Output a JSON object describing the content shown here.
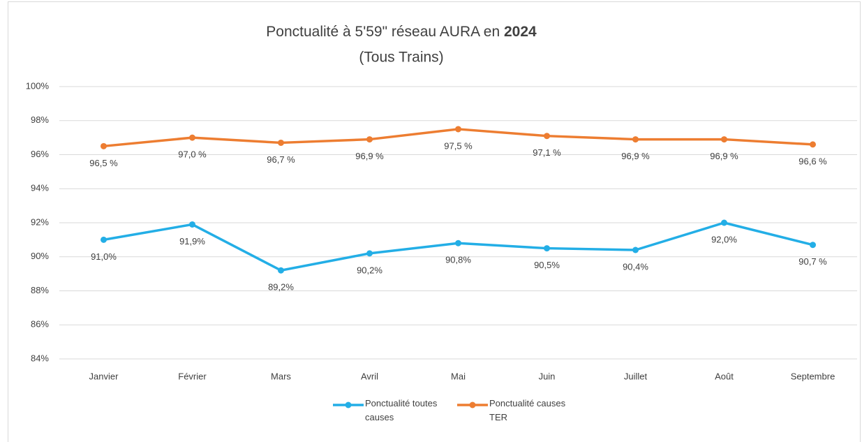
{
  "chart_data": {
    "type": "line",
    "title": [
      "Ponctualité à 5'59\" réseau AURA en ",
      "2024"
    ],
    "subtitle": "(Tous Trains)",
    "categories": [
      "Janvier",
      "Février",
      "Mars",
      "Avril",
      "Mai",
      "Juin",
      "Juillet",
      "Août",
      "Septembre"
    ],
    "series": [
      {
        "name": "Ponctualité toutes causes",
        "color": "#23aee6",
        "values": [
          91.0,
          91.9,
          89.2,
          90.2,
          90.8,
          90.5,
          90.4,
          92.0,
          90.7
        ],
        "value_labels": [
          "91,0%",
          "91,9%",
          "89,2%",
          "90,2%",
          "90,8%",
          "90,5%",
          "90,4%",
          "92,0%",
          "90,7 %"
        ]
      },
      {
        "name": "Ponctualité causes TER",
        "color": "#ed7d31",
        "values": [
          96.5,
          97.0,
          96.7,
          96.9,
          97.5,
          97.1,
          96.9,
          96.9,
          96.6
        ],
        "value_labels": [
          "96,5 %",
          "97,0 %",
          "96,7 %",
          "96,9 %",
          "97,5 %",
          "97,1 %",
          "96,9 %",
          "96,9 %",
          "96,6 %"
        ]
      }
    ],
    "ylim": [
      84,
      100
    ],
    "yticks": [
      {
        "value": 84,
        "label": "84%"
      },
      {
        "value": 86,
        "label": "86%"
      },
      {
        "value": 88,
        "label": "88%"
      },
      {
        "value": 90,
        "label": "90%"
      },
      {
        "value": 92,
        "label": "92%"
      },
      {
        "value": 94,
        "label": "94%"
      },
      {
        "value": 96,
        "label": "96%"
      },
      {
        "value": 98,
        "label": "98%"
      },
      {
        "value": 100,
        "label": "100%"
      }
    ],
    "grid": true,
    "legend": "bottom"
  }
}
